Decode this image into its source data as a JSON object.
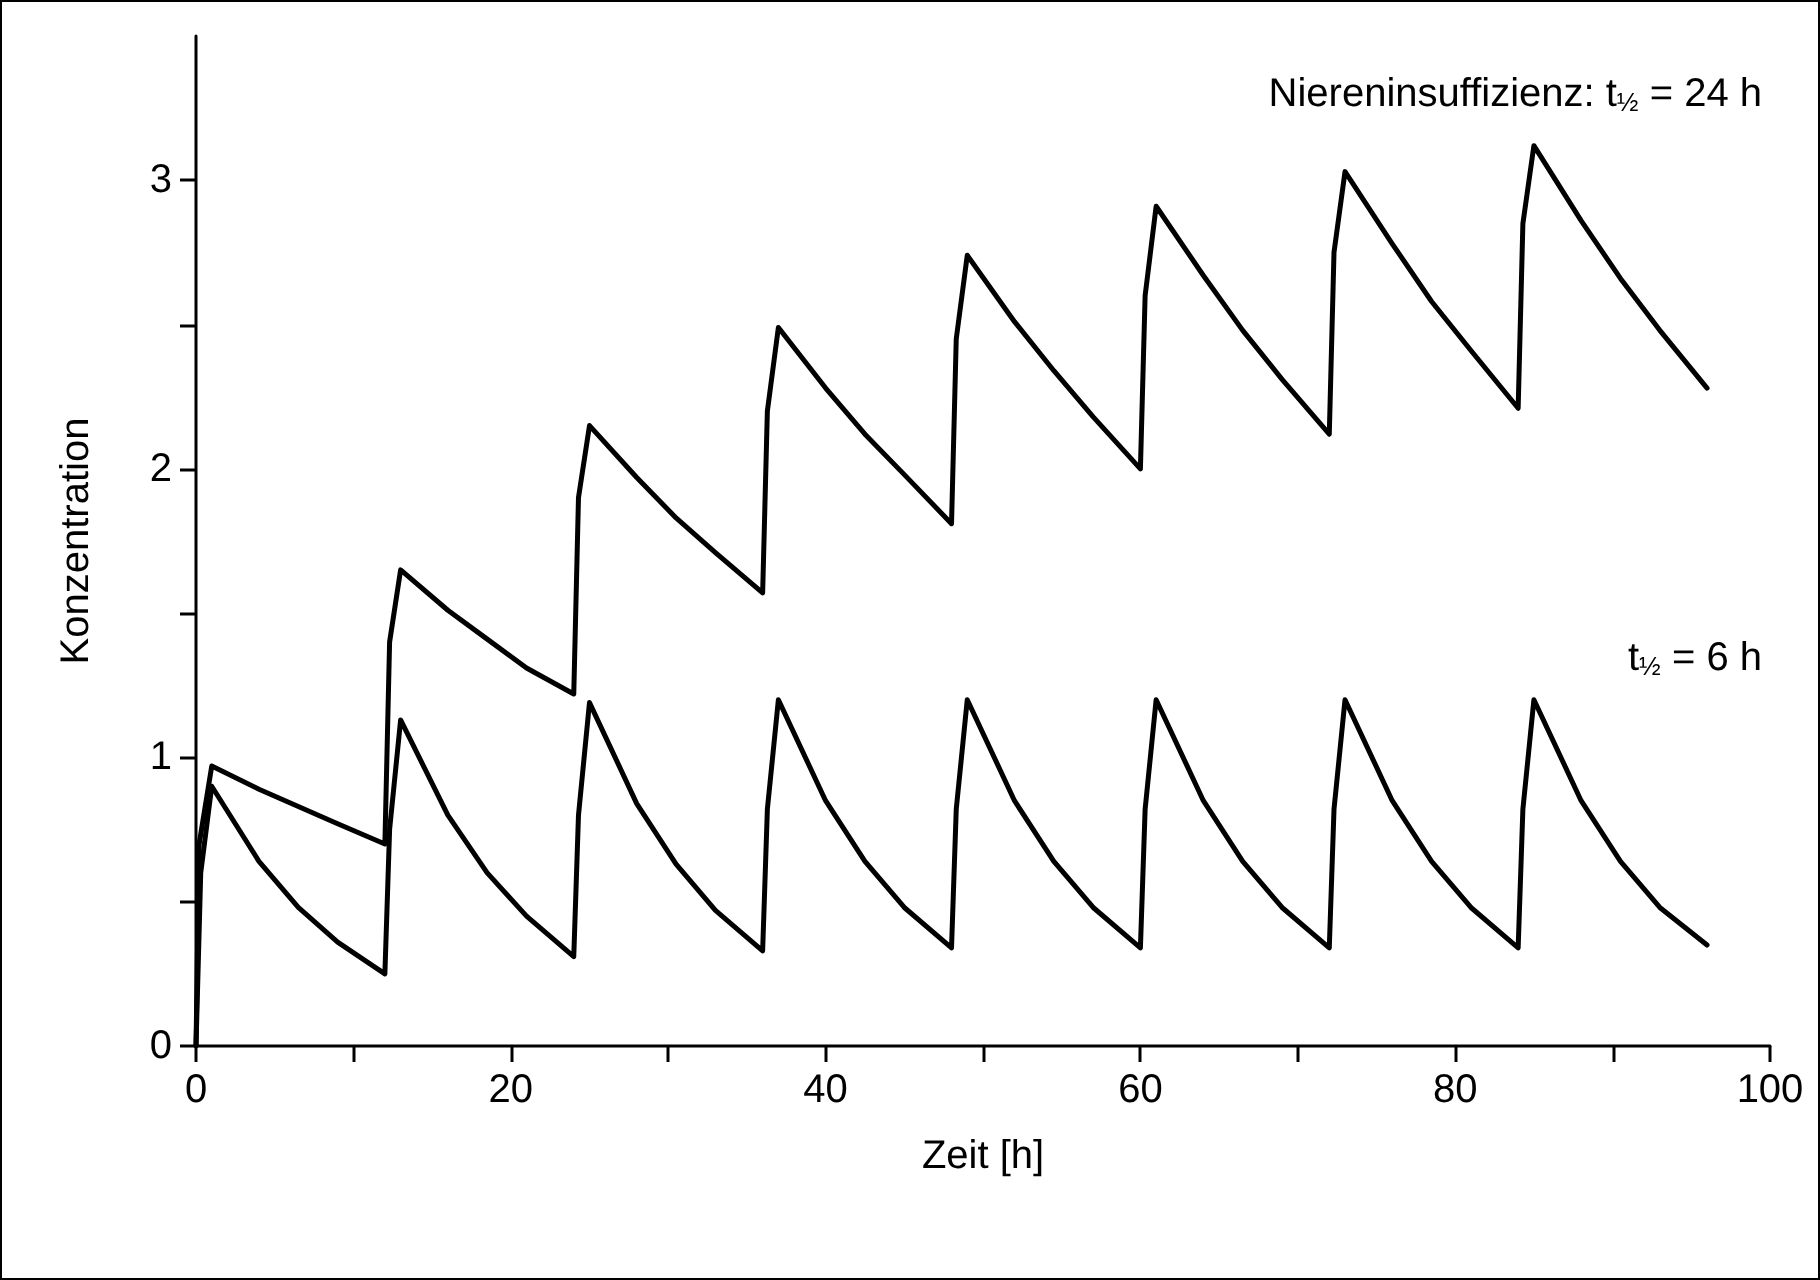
{
  "chart_data": {
    "type": "line",
    "xlabel": "Zeit [h]",
    "ylabel": "Konzentration",
    "annotations": [
      "Niereninsuffizienz: t$_{½}$ = 24 h",
      "t$_{½}$ = 6 h"
    ],
    "xlim": [
      0,
      100
    ],
    "xticks": [
      0,
      {
        "value": 10,
        "label": null
      },
      20,
      {
        "value": 30,
        "label": null
      },
      40,
      {
        "value": 50,
        "label": null
      },
      60,
      {
        "value": 70,
        "label": null
      },
      80,
      {
        "value": 90,
        "label": null
      },
      100
    ],
    "ylim": [
      0,
      3.5
    ],
    "yticks": [
      0,
      {
        "value": 0.5,
        "label": null
      },
      1,
      {
        "value": 1.5,
        "label": null
      },
      2,
      {
        "value": 2.5,
        "label": null
      },
      3
    ],
    "marker": "none",
    "line_style": "solid",
    "series": [
      {
        "color": "#000000",
        "x": [
          0,
          0.2,
          1,
          4,
          6.5,
          9,
          12,
          12.3,
          13,
          16,
          18.5,
          21,
          24,
          24.3,
          25,
          28,
          30.5,
          33,
          36,
          36.3,
          37,
          40,
          42.5,
          45,
          48,
          48.3,
          49,
          52,
          54.5,
          57,
          60,
          60.3,
          61,
          64,
          66.5,
          69,
          72,
          72.3,
          73,
          76,
          78.5,
          81,
          84,
          84.3,
          85,
          88,
          90.5,
          93,
          96
        ],
        "values": [
          0,
          0.7,
          0.97,
          0.89,
          0.83,
          0.77,
          0.7,
          1.4,
          1.65,
          1.51,
          1.41,
          1.31,
          1.22,
          1.9,
          2.15,
          1.97,
          1.83,
          1.71,
          1.57,
          2.2,
          2.49,
          2.28,
          2.12,
          1.98,
          1.81,
          2.45,
          2.74,
          2.51,
          2.34,
          2.18,
          2.0,
          2.6,
          2.91,
          2.67,
          2.48,
          2.31,
          2.12,
          2.75,
          3.03,
          2.78,
          2.58,
          2.41,
          2.21,
          2.85,
          3.12,
          2.86,
          2.66,
          2.48,
          2.28
        ]
      },
      {
        "color": "#000000",
        "x": [
          0,
          0.3,
          1,
          4,
          6.5,
          9,
          12,
          12.3,
          13,
          16,
          18.5,
          21,
          24,
          24.3,
          25,
          28,
          30.5,
          33,
          36,
          36.3,
          37,
          40,
          42.5,
          45,
          48,
          48.3,
          49,
          52,
          54.5,
          57,
          60,
          60.3,
          61,
          64,
          66.5,
          69,
          72,
          72.3,
          73,
          76,
          78.5,
          81,
          84,
          84.3,
          85,
          88,
          90.5,
          93,
          96
        ],
        "values": [
          0,
          0.6,
          0.9,
          0.64,
          0.48,
          0.36,
          0.25,
          0.75,
          1.13,
          0.8,
          0.6,
          0.45,
          0.31,
          0.8,
          1.19,
          0.84,
          0.63,
          0.47,
          0.33,
          0.82,
          1.2,
          0.85,
          0.64,
          0.48,
          0.34,
          0.82,
          1.2,
          0.85,
          0.64,
          0.48,
          0.34,
          0.82,
          1.2,
          0.85,
          0.64,
          0.48,
          0.34,
          0.82,
          1.2,
          0.85,
          0.64,
          0.48,
          0.34,
          0.82,
          1.2,
          0.85,
          0.64,
          0.48,
          0.35
        ]
      }
    ]
  }
}
